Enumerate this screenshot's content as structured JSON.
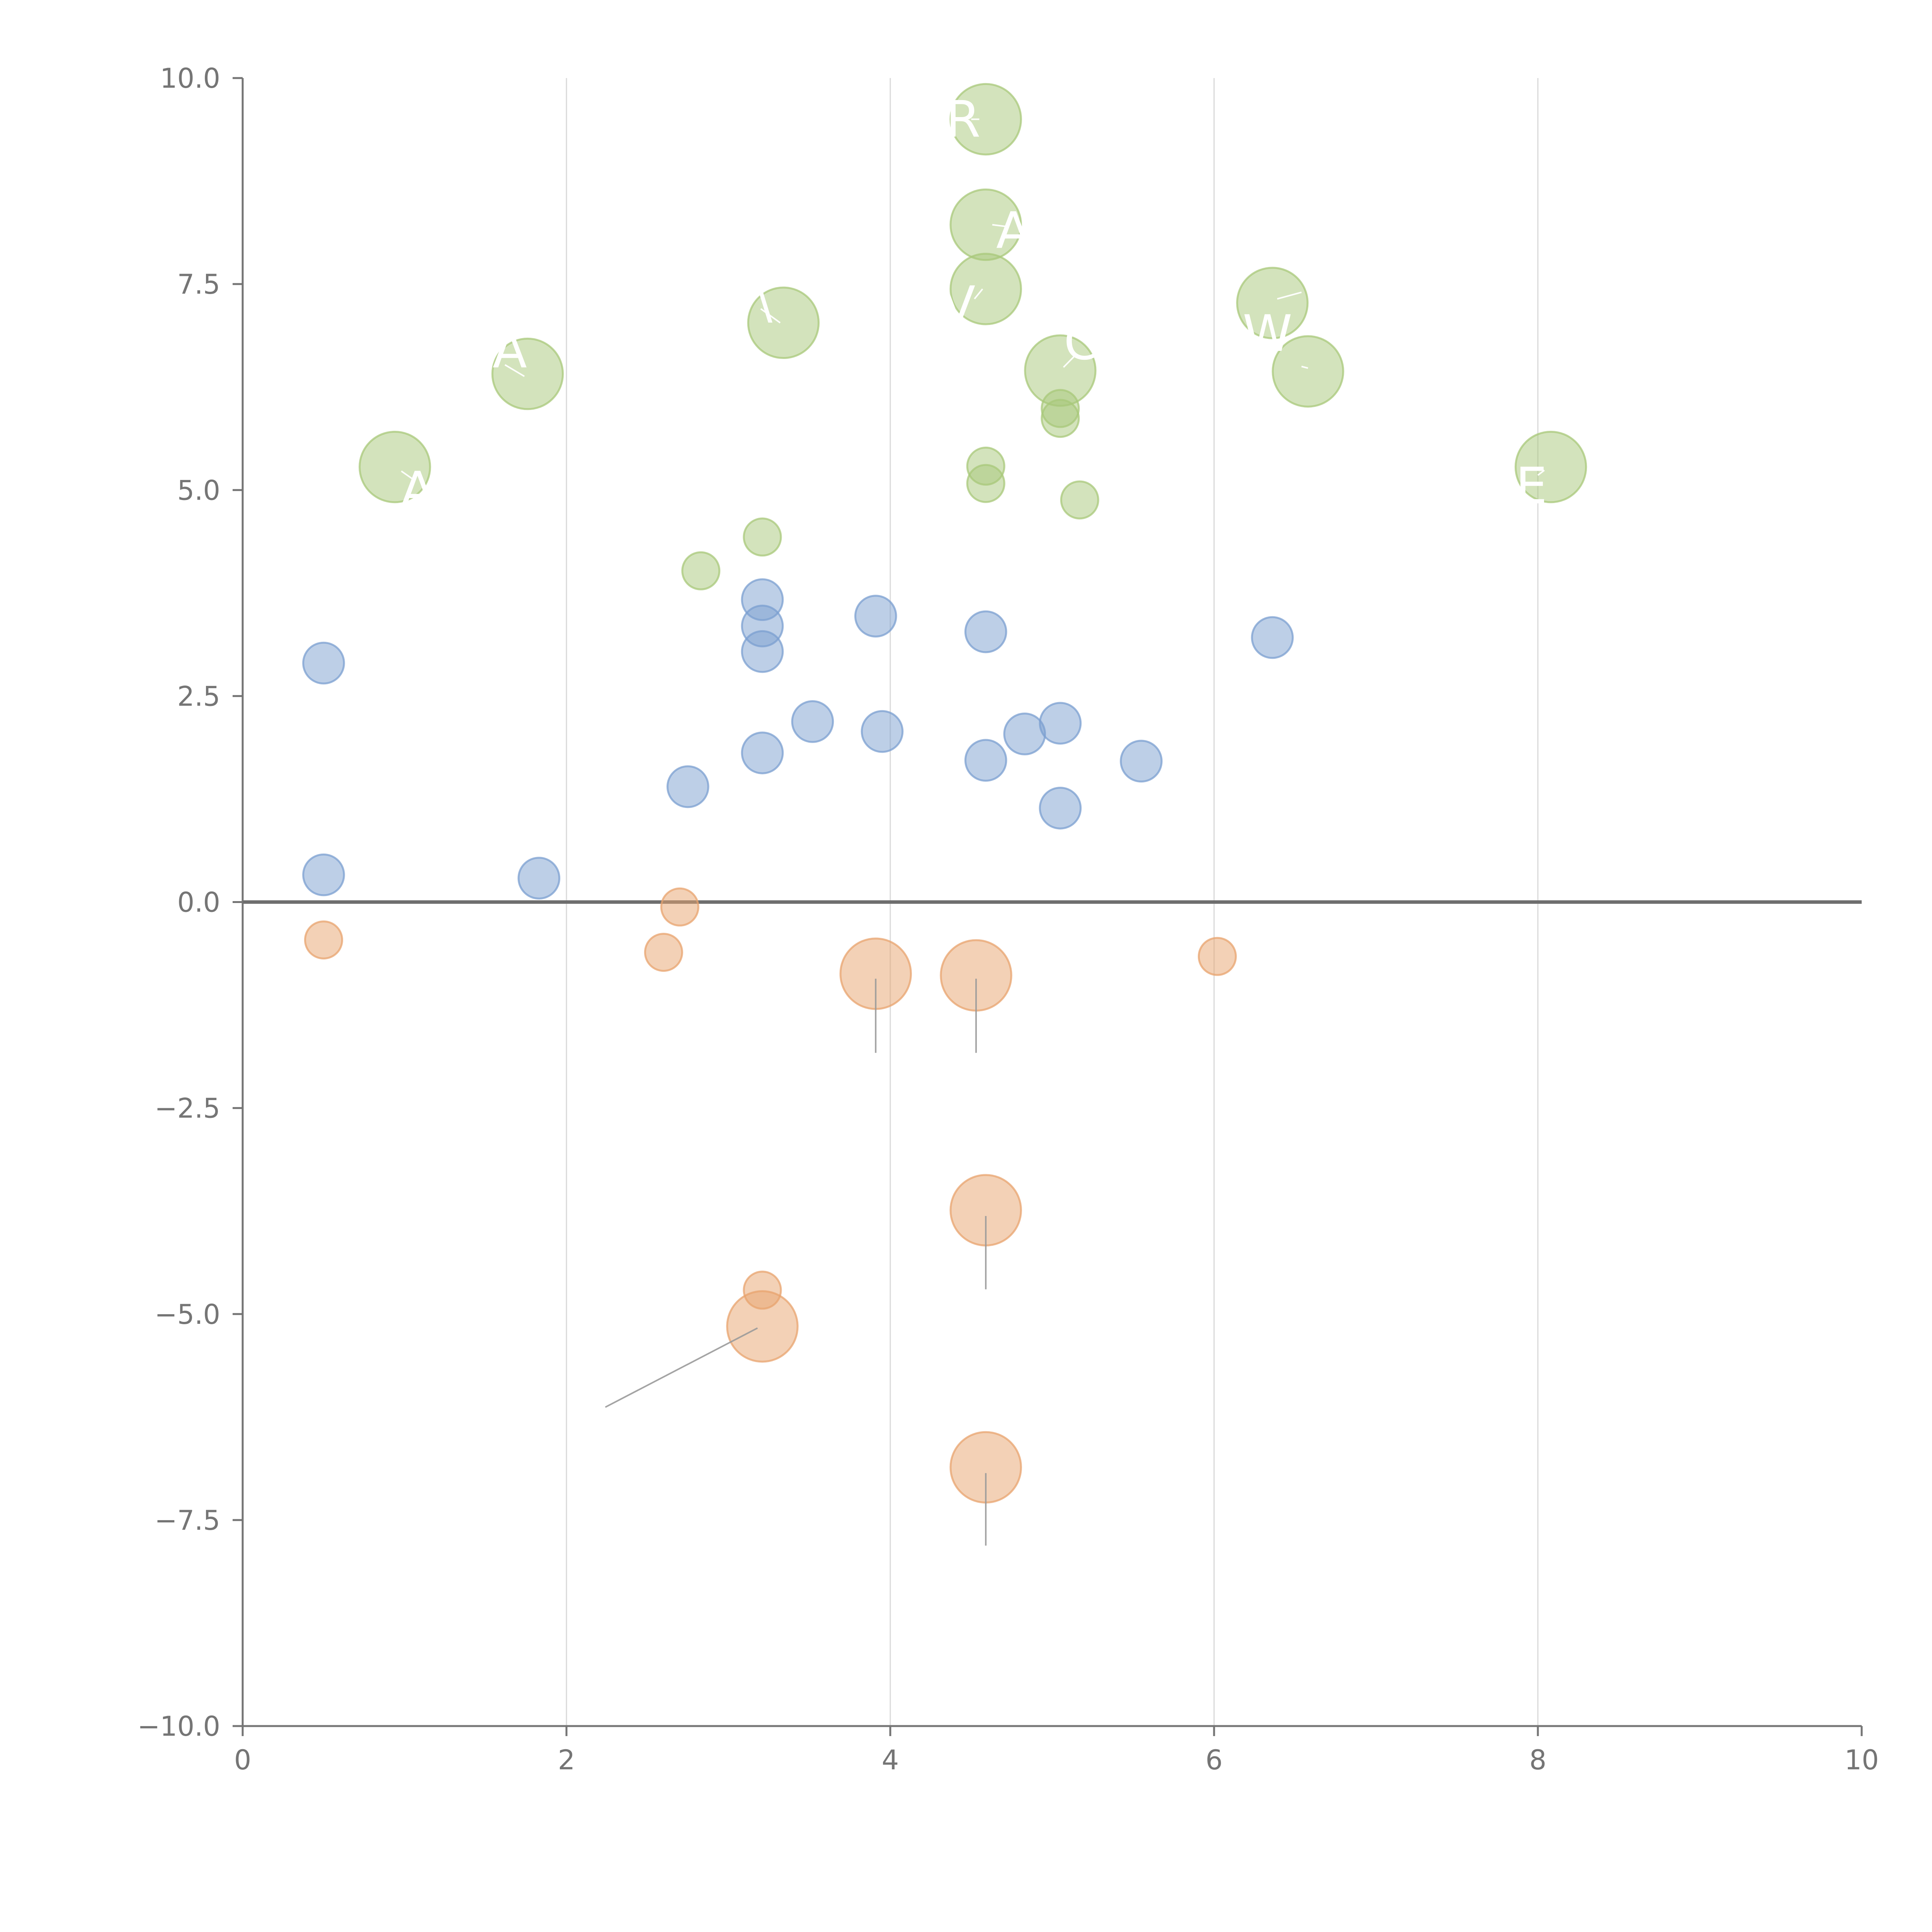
{
  "chart_data": {
    "type": "scatter",
    "title": "",
    "xlabel": "",
    "ylabel": "",
    "xlim": [
      0,
      10
    ],
    "ylim": [
      -10,
      10
    ],
    "xticks": [
      0,
      2,
      4,
      6,
      8,
      10
    ],
    "xtick_labels": [
      "0",
      "2",
      "4",
      "6",
      "8",
      "10"
    ],
    "yticks": [
      10,
      7.5,
      5,
      2.5,
      0,
      -2.5,
      -5,
      -7.5,
      -10
    ],
    "ytick_labels": [
      "10.0",
      "7.5",
      "5.0",
      "2.5",
      "0.0",
      "−2.5",
      "−5.0",
      "−7.5",
      "−10.0"
    ],
    "vertical_grid_at": [
      2,
      4,
      6,
      8
    ],
    "zero_line": true,
    "colors": {
      "blue": "#7b9fd0",
      "green": "#a8c87a",
      "orange": "#e8a36d",
      "axis": "#757575",
      "grid": "#d9d9d9",
      "leader_light": "#ffffff",
      "leader_dark": "#9a9a9a"
    },
    "size_scale": {
      "small": 1,
      "medium": 1.1,
      "large": 1.9
    },
    "series": [
      {
        "name": "blue",
        "color_key": "blue",
        "points": [
          {
            "x": 0.5,
            "y": 2.9,
            "size": "medium"
          },
          {
            "x": 0.5,
            "y": 0.33,
            "size": "medium"
          },
          {
            "x": 1.83,
            "y": 0.29,
            "size": "medium"
          },
          {
            "x": 2.75,
            "y": 1.4,
            "size": "medium"
          },
          {
            "x": 3.21,
            "y": 3.67,
            "size": "medium"
          },
          {
            "x": 3.21,
            "y": 3.35,
            "size": "medium"
          },
          {
            "x": 3.21,
            "y": 3.04,
            "size": "medium"
          },
          {
            "x": 3.21,
            "y": 1.81,
            "size": "medium"
          },
          {
            "x": 3.52,
            "y": 2.19,
            "size": "medium"
          },
          {
            "x": 3.91,
            "y": 3.47,
            "size": "medium"
          },
          {
            "x": 3.95,
            "y": 2.07,
            "size": "medium"
          },
          {
            "x": 4.59,
            "y": 3.28,
            "size": "medium"
          },
          {
            "x": 4.59,
            "y": 1.72,
            "size": "medium"
          },
          {
            "x": 4.83,
            "y": 2.04,
            "size": "medium"
          },
          {
            "x": 5.05,
            "y": 2.17,
            "size": "medium"
          },
          {
            "x": 5.05,
            "y": 1.14,
            "size": "medium"
          },
          {
            "x": 5.55,
            "y": 1.71,
            "size": "medium"
          },
          {
            "x": 6.36,
            "y": 3.21,
            "size": "medium"
          }
        ]
      },
      {
        "name": "green",
        "color_key": "green",
        "points": [
          {
            "x": 0.94,
            "y": 5.28,
            "size": "large",
            "label": "A",
            "label_x": 1.08,
            "label_y": 5.0,
            "leader": [
              0.98,
              5.23,
              1.06,
              5.12
            ]
          },
          {
            "x": 1.76,
            "y": 6.41,
            "size": "large",
            "label": "A",
            "label_x": 1.65,
            "label_y": 6.7,
            "leader": [
              1.74,
              6.38,
              1.62,
              6.52
            ]
          },
          {
            "x": 3.34,
            "y": 7.03,
            "size": "large",
            "label": "\\",
            "label_x": 3.22,
            "label_y": 7.3,
            "leader": [
              3.32,
              7.03,
              3.2,
              7.2
            ]
          },
          {
            "x": 4.59,
            "y": 9.5,
            "size": "large",
            "label": "R",
            "label_x": 4.45,
            "label_y": 9.5,
            "leader": [
              4.55,
              9.5,
              4.5,
              9.5
            ]
          },
          {
            "x": 4.59,
            "y": 8.22,
            "size": "large",
            "label": "A",
            "label_x": 4.76,
            "label_y": 8.15,
            "leader": [
              4.63,
              8.22,
              4.71,
              8.2
            ]
          },
          {
            "x": 4.59,
            "y": 7.44,
            "size": "large",
            "label": "V",
            "label_x": 4.42,
            "label_y": 7.25,
            "leader": [
              4.57,
              7.44,
              4.52,
              7.32
            ]
          },
          {
            "x": 5.05,
            "y": 6.45,
            "size": "large",
            "label": "C",
            "label_x": 5.18,
            "label_y": 6.8,
            "leader": [
              5.07,
              6.49,
              5.15,
              6.65
            ]
          },
          {
            "x": 6.36,
            "y": 7.27,
            "size": "large",
            "label": "W",
            "label_x": 6.33,
            "label_y": 6.9,
            "leader": [
              6.39,
              7.32,
              6.54,
              7.4
            ]
          },
          {
            "x": 6.58,
            "y": 6.44,
            "size": "large",
            "label": "",
            "label_x": 6.55,
            "label_y": 6.5,
            "leader": [
              6.58,
              6.48,
              6.54,
              6.5
            ]
          },
          {
            "x": 8.08,
            "y": 5.28,
            "size": "large",
            "label": "E",
            "label_x": 7.96,
            "label_y": 5.05,
            "leader": [
              8.04,
              5.24,
              8.0,
              5.18
            ]
          },
          {
            "x": 2.83,
            "y": 4.02,
            "size": "small"
          },
          {
            "x": 3.21,
            "y": 4.43,
            "size": "small"
          },
          {
            "x": 4.59,
            "y": 5.29,
            "size": "small"
          },
          {
            "x": 4.59,
            "y": 5.08,
            "size": "small"
          },
          {
            "x": 5.05,
            "y": 5.99,
            "size": "small"
          },
          {
            "x": 5.05,
            "y": 5.87,
            "size": "small"
          },
          {
            "x": 5.17,
            "y": 4.88,
            "size": "small"
          }
        ]
      },
      {
        "name": "orange",
        "color_key": "orange",
        "points": [
          {
            "x": 0.5,
            "y": -0.46,
            "size": "small"
          },
          {
            "x": 2.6,
            "y": -0.61,
            "size": "small"
          },
          {
            "x": 2.7,
            "y": -0.06,
            "size": "small"
          },
          {
            "x": 6.02,
            "y": -0.66,
            "size": "small"
          },
          {
            "x": 3.21,
            "y": -4.71,
            "size": "small"
          },
          {
            "x": 3.91,
            "y": -0.87,
            "size": "large",
            "leader": [
              3.91,
              -0.93,
              3.91,
              -1.83
            ]
          },
          {
            "x": 4.53,
            "y": -0.89,
            "size": "large",
            "leader": [
              4.53,
              -0.93,
              4.53,
              -1.83
            ]
          },
          {
            "x": 4.59,
            "y": -3.74,
            "size": "large",
            "leader": [
              4.59,
              -3.81,
              4.59,
              -4.7
            ]
          },
          {
            "x": 3.21,
            "y": -5.15,
            "size": "large",
            "leader": [
              3.18,
              -5.17,
              2.24,
              -6.13
            ]
          },
          {
            "x": 4.59,
            "y": -6.86,
            "size": "large",
            "leader": [
              4.59,
              -6.93,
              4.59,
              -7.81
            ]
          }
        ]
      }
    ]
  }
}
